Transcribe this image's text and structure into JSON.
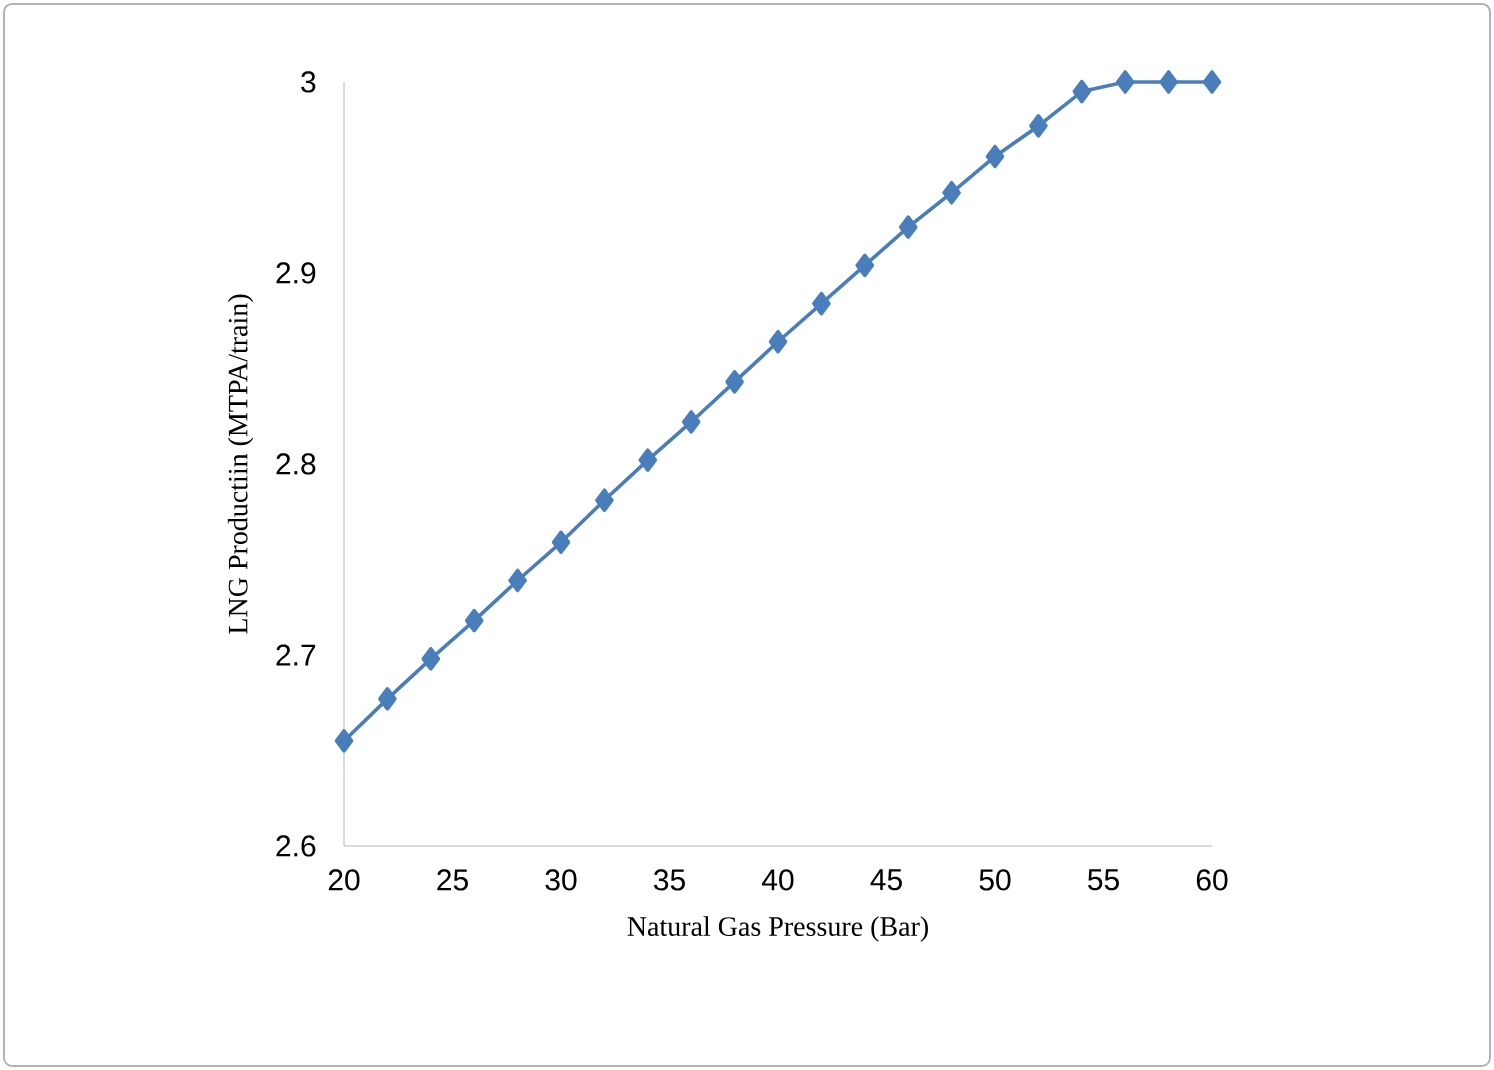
{
  "chart_data": {
    "type": "line",
    "xlabel": "Natural Gas Pressure (Bar)",
    "ylabel": "LNG Productiin (MTPA/train)",
    "x": [
      20,
      22,
      24,
      26,
      28,
      30,
      32,
      34,
      36,
      38,
      40,
      42,
      44,
      46,
      48,
      50,
      52,
      54,
      56,
      58,
      60
    ],
    "series": [
      {
        "color": "#4a7ebb",
        "values": [
          2.655,
          2.677,
          2.698,
          2.718,
          2.739,
          2.759,
          2.781,
          2.802,
          2.822,
          2.843,
          2.864,
          2.884,
          2.904,
          2.924,
          2.942,
          2.961,
          2.977,
          2.995,
          3.0,
          3.0,
          3.0
        ]
      }
    ],
    "xlim": [
      20,
      60
    ],
    "ylim": [
      2.6,
      3
    ],
    "xticks": [
      20,
      25,
      30,
      35,
      40,
      45,
      50,
      55,
      60
    ],
    "yticks": [
      2.6,
      2.7,
      2.8,
      2.9,
      3
    ],
    "marker": "diamond",
    "line_style": "solid"
  }
}
